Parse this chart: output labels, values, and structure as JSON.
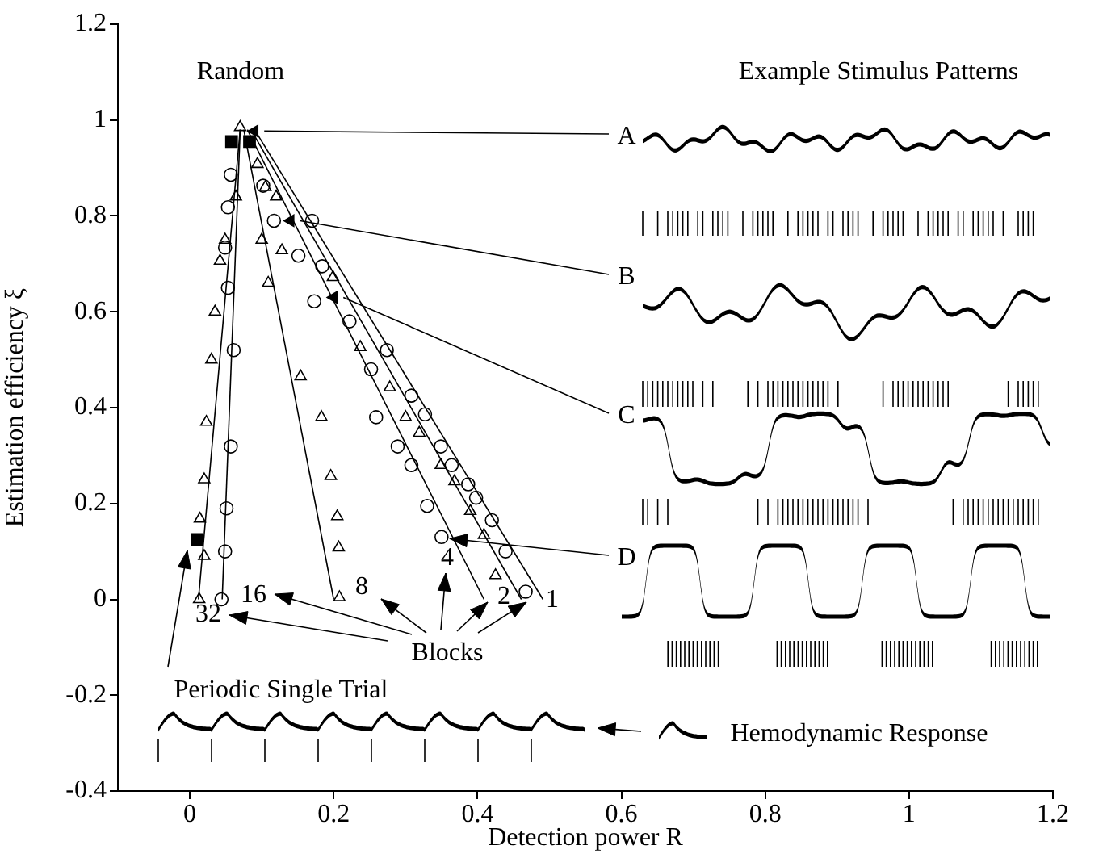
{
  "chart_data": {
    "type": "scatter",
    "xlabel": "Detection power R",
    "ylabel": "Estimation efficiency ξ",
    "xlim": [
      -0.1,
      1.2
    ],
    "xticks": [
      0,
      0.2,
      0.4,
      0.6,
      0.8,
      1,
      1.2
    ],
    "ylim": [
      -0.4,
      1.2
    ],
    "yticks": [
      -0.4,
      -0.2,
      0,
      0.2,
      0.4,
      0.6,
      0.8,
      1,
      1.2
    ],
    "grid": false,
    "legend": false,
    "series": [
      {
        "type": "scatter",
        "marker": "triangle",
        "color": "#000000",
        "x": [
          0.07,
          0.094,
          0.064,
          0.049,
          0.042,
          0.035,
          0.03,
          0.023,
          0.02,
          0.014,
          0.02,
          0.013,
          0.1,
          0.109,
          0.128,
          0.154,
          0.183,
          0.196,
          0.205,
          0.207,
          0.208,
          0.105,
          0.12,
          0.199,
          0.237,
          0.278,
          0.3,
          0.319,
          0.349,
          0.368,
          0.39,
          0.409,
          0.425
        ],
        "values": [
          0.985,
          0.908,
          0.84,
          0.75,
          0.706,
          0.6,
          0.5,
          0.37,
          0.25,
          0.168,
          0.09,
          0,
          0.75,
          0.66,
          0.728,
          0.465,
          0.38,
          0.257,
          0.173,
          0.108,
          0.004,
          0.86,
          0.84,
          0.672,
          0.526,
          0.442,
          0.38,
          0.347,
          0.28,
          0.246,
          0.184,
          0.134,
          0.05
        ]
      },
      {
        "type": "scatter",
        "marker": "circle",
        "color": "#000000",
        "x": [
          0.057,
          0.053,
          0.049,
          0.053,
          0.061,
          0.057,
          0.051,
          0.049,
          0.044,
          0.102,
          0.117,
          0.151,
          0.184,
          0.17,
          0.173,
          0.222,
          0.252,
          0.259,
          0.289,
          0.308,
          0.33,
          0.35,
          0.274,
          0.308,
          0.327,
          0.349,
          0.364,
          0.387,
          0.398,
          0.42,
          0.439,
          0.467
        ],
        "values": [
          0.886,
          0.818,
          0.734,
          0.65,
          0.52,
          0.319,
          0.19,
          0.1,
          0,
          0.863,
          0.79,
          0.717,
          0.695,
          0.79,
          0.622,
          0.58,
          0.48,
          0.38,
          0.319,
          0.28,
          0.195,
          0.13,
          0.52,
          0.425,
          0.386,
          0.319,
          0.28,
          0.24,
          0.212,
          0.165,
          0.1,
          0.016
        ]
      },
      {
        "type": "scatter",
        "marker": "square",
        "color": "#000000",
        "x": [
          0.058,
          0.083,
          0.01
        ],
        "values": [
          0.955,
          0.955,
          0.125
        ]
      },
      {
        "type": "scatter",
        "marker": "triangle",
        "color": "#000000",
        "x": [
          0.09,
          0.14,
          0.2
        ],
        "values": [
          0.977,
          0.79,
          0.63
        ]
      },
      {
        "type": "line",
        "marker": "none",
        "color": "#000000",
        "x": [
          0.07,
          0.012
        ],
        "values": [
          0.98,
          0
        ]
      },
      {
        "type": "line",
        "marker": "none",
        "color": "#000000",
        "x": [
          0.07,
          0.045
        ],
        "values": [
          0.98,
          0
        ]
      },
      {
        "type": "line",
        "marker": "none",
        "color": "#000000",
        "x": [
          0.075,
          0.2
        ],
        "values": [
          0.98,
          0
        ]
      },
      {
        "type": "line",
        "marker": "none",
        "color": "#000000",
        "x": [
          0.08,
          0.409
        ],
        "values": [
          0.98,
          0
        ]
      },
      {
        "type": "line",
        "marker": "none",
        "color": "#000000",
        "x": [
          0.085,
          0.461
        ],
        "values": [
          0.98,
          0
        ]
      },
      {
        "type": "line",
        "marker": "none",
        "color": "#000000",
        "x": [
          0.09,
          0.491
        ],
        "values": [
          0.98,
          0
        ]
      }
    ],
    "annotations": [
      "Random",
      "Example Stimulus Patterns",
      {
        "text": "A",
        "x": 0.09,
        "y": 0.977
      },
      {
        "text": "B",
        "x": 0.14,
        "y": 0.79
      },
      {
        "text": "C",
        "x": 0.2,
        "y": 0.63
      },
      {
        "text": "D",
        "x": 0.35,
        "y": 0.13
      },
      "32",
      "16",
      "8",
      "4",
      "2",
      "1",
      "Blocks",
      "Periodic Single Trial",
      "Hemodynamic Response"
    ]
  }
}
